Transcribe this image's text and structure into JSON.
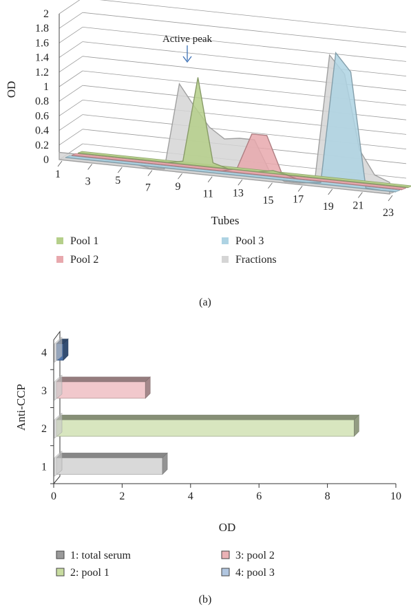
{
  "chart_data": [
    {
      "type": "area",
      "subtitle": "(a)",
      "xlabel": "Tubes",
      "ylabel": "OD",
      "ylim": [
        0,
        2
      ],
      "yticks": [
        "0",
        "0.2",
        "0.4",
        "0.6",
        "0.8",
        "1",
        "1.2",
        "1.4",
        "1.6",
        "1.8",
        "2"
      ],
      "categories": [
        "1",
        "2",
        "3",
        "4",
        "5",
        "6",
        "7",
        "8",
        "9",
        "10",
        "11",
        "12",
        "13",
        "14",
        "15",
        "16",
        "17",
        "18",
        "19",
        "20",
        "21",
        "22",
        "23"
      ],
      "xtick_labels": [
        "1",
        "3",
        "5",
        "7",
        "9",
        "11",
        "13",
        "15",
        "17",
        "19",
        "21",
        "23"
      ],
      "annotation": "Active peak",
      "legend_position": "bottom",
      "series": [
        {
          "name": "Pool 1",
          "color": "#b5cf8a",
          "values": [
            0,
            0,
            0,
            0,
            0,
            0,
            0,
            0.04,
            1.21,
            0.06,
            0,
            0,
            0,
            0.04,
            0,
            0,
            0,
            0,
            0,
            0,
            0,
            0,
            0
          ]
        },
        {
          "name": "Pool 2",
          "color": "#e8a8ad",
          "values": [
            0,
            0,
            0,
            0,
            0,
            0,
            0,
            0,
            0,
            0,
            0,
            0.05,
            0.55,
            0.55,
            0.05,
            0,
            0,
            0,
            0,
            0,
            0,
            0,
            0
          ]
        },
        {
          "name": "Pool 3",
          "color": "#aed3e3",
          "values": [
            0,
            0,
            0,
            0,
            0,
            0,
            0,
            0,
            0,
            0,
            0,
            0,
            0,
            0,
            0,
            0,
            0,
            0.02,
            1.82,
            1.58,
            0.01,
            0,
            0
          ]
        },
        {
          "name": "Fractions",
          "color": "#d5d5d5",
          "values": [
            0.1,
            0.1,
            0.1,
            0.1,
            0.1,
            0.05,
            0.01,
            0.02,
            1.21,
            0.92,
            0.66,
            0.52,
            0.55,
            0.55,
            0.14,
            0.02,
            0.02,
            0.05,
            1.82,
            1.58,
            0.56,
            0.24,
            0.16
          ]
        }
      ]
    },
    {
      "type": "bar",
      "orientation": "horizontal",
      "subtitle": "(b)",
      "xlabel": "OD",
      "ylabel": "Anti-CCP",
      "xlim": [
        0,
        10
      ],
      "xticks": [
        "0",
        "2",
        "4",
        "6",
        "8",
        "10"
      ],
      "categories": [
        "1",
        "2",
        "3",
        "4"
      ],
      "values": [
        3.1,
        8.7,
        2.6,
        0.2
      ],
      "colors": [
        "#d9d9d9",
        "#d8e6bf",
        "#f1c8cc",
        "#4d72a8"
      ],
      "legend_position": "bottom",
      "legend": [
        {
          "label": "1: total serum",
          "color": "#9a9a9a"
        },
        {
          "label": "2: pool 1",
          "color": "#c8dca0"
        },
        {
          "label": "3: pool 2",
          "color": "#eab2b5"
        },
        {
          "label": "4: pool 3",
          "color": "#b1c6e0"
        }
      ]
    }
  ]
}
